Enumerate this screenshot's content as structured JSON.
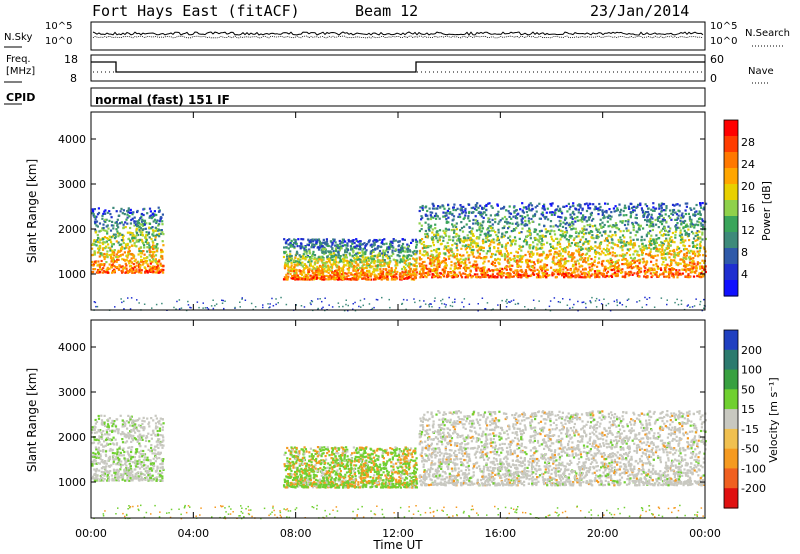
{
  "header": {
    "station": "Fort Hays East (fitACF)",
    "beam": "Beam 12",
    "date": "23/Jan/2014"
  },
  "noise_panel": {
    "left_label": "N.Sky",
    "right_label": "N.Search",
    "top_tick": "10^5",
    "bottom_tick": "10^0"
  },
  "freq_panel": {
    "left_label_1": "Freq.",
    "left_label_2": "[MHz]",
    "right_label": "Nave",
    "left_ticks": [
      "18",
      "8"
    ],
    "right_ticks": [
      "60",
      "0"
    ]
  },
  "cpid": {
    "label": "CPID",
    "text": "normal (fast) 151 IF"
  },
  "chart_data": [
    {
      "type": "heatmap",
      "ylabel": "Slant Range [km]",
      "xlabel": "",
      "y_ticks": [
        "4000",
        "3000",
        "2000",
        "1000"
      ],
      "y_tick_values": [
        4000,
        3000,
        2000,
        1000
      ],
      "ylim": [
        200,
        4600
      ],
      "xlim": [
        0,
        24
      ],
      "colorbar_label": "Power [dB]",
      "colorbar_ticks": [
        "28",
        "24",
        "20",
        "16",
        "12",
        "8",
        "4"
      ],
      "colorbar_values": [
        28,
        24,
        20,
        16,
        12,
        8,
        4
      ],
      "colorbar_colors": [
        "#ff0000",
        "#ff3c00",
        "#ff7800",
        "#ffa600",
        "#e8d000",
        "#8fd14b",
        "#3aa55b",
        "#3e8a7a",
        "#2f5aa9",
        "#1f2fd0",
        "#1010ff"
      ],
      "echo_regions": [
        {
          "t_start": 0.0,
          "t_end": 2.8,
          "r_low": 1050,
          "r_high": 2500
        },
        {
          "t_start": 7.5,
          "t_end": 12.7,
          "r_low": 900,
          "r_high": 1800
        },
        {
          "t_start": 12.8,
          "t_end": 24.0,
          "r_low": 950,
          "r_high": 2600
        }
      ]
    },
    {
      "type": "heatmap",
      "ylabel": "Slant Range [km]",
      "xlabel": "Time UT",
      "x_ticks": [
        "00:00",
        "04:00",
        "08:00",
        "12:00",
        "16:00",
        "20:00",
        "00:00"
      ],
      "x_tick_values": [
        0,
        4,
        8,
        12,
        16,
        20,
        24
      ],
      "y_ticks": [
        "4000",
        "3000",
        "2000",
        "1000"
      ],
      "y_tick_values": [
        4000,
        3000,
        2000,
        1000
      ],
      "ylim": [
        200,
        4600
      ],
      "xlim": [
        0,
        24
      ],
      "colorbar_label": "Velocity [m s⁻¹]",
      "colorbar_ticks": [
        "200",
        "100",
        "50",
        "15",
        "-15",
        "-50",
        "-100",
        "-200"
      ],
      "colorbar_values": [
        200,
        100,
        50,
        15,
        -15,
        -50,
        -100,
        -200
      ],
      "colorbar_colors": [
        "#2040c0",
        "#2c7a6e",
        "#38a040",
        "#70d030",
        "#c8c8c0",
        "#f0c050",
        "#f59a20",
        "#f06020",
        "#e01010"
      ],
      "echo_regions": [
        {
          "t_start": 0.0,
          "t_end": 2.8,
          "r_low": 1050,
          "r_high": 2500
        },
        {
          "t_start": 7.5,
          "t_end": 12.7,
          "r_low": 900,
          "r_high": 1800
        },
        {
          "t_start": 12.8,
          "t_end": 24.0,
          "r_low": 950,
          "r_high": 2600
        }
      ]
    }
  ]
}
